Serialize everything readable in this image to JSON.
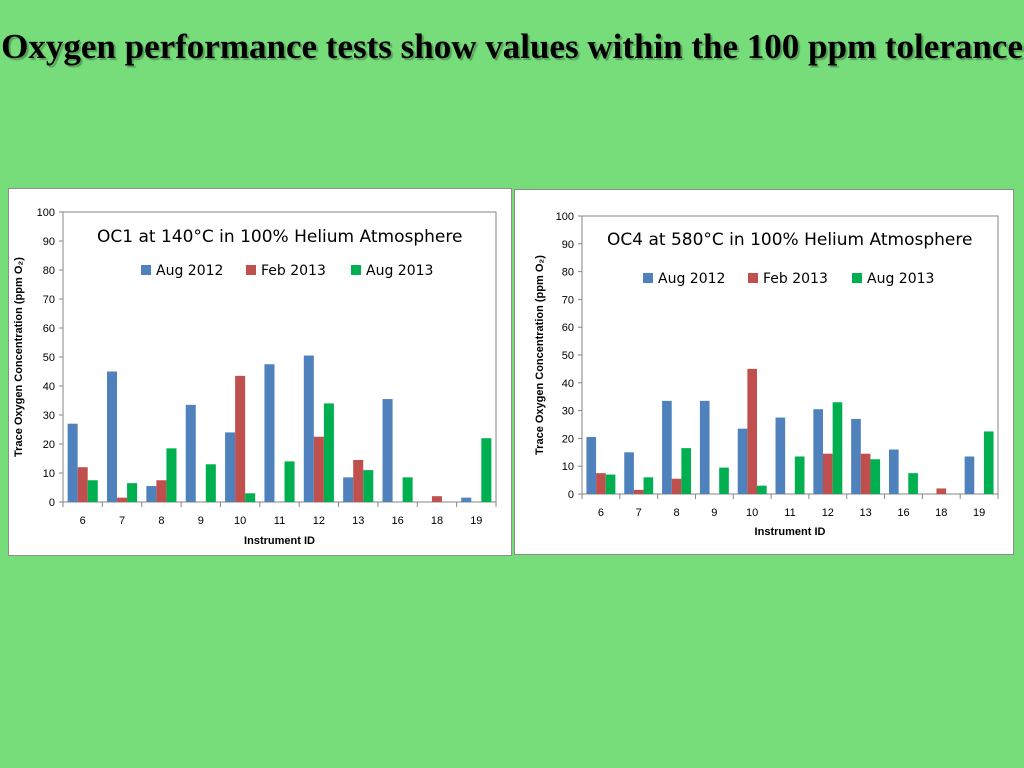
{
  "slide": {
    "title": "Oxygen performance tests show values within the 100 ppm tolerance"
  },
  "colors": {
    "background": "#76dd7a",
    "aug2012": "#4f81bd",
    "feb2013": "#c0504d",
    "aug2013": "#00b050"
  },
  "chart_data": [
    {
      "type": "bar",
      "title": "OC1 at 140°C in 100% Helium Atmosphere",
      "xlabel": "Instrument ID",
      "ylabel": "Trace Oxygen Concentration (ppm O₂)",
      "ylim": [
        0,
        100
      ],
      "yticks": [
        0,
        10,
        20,
        30,
        40,
        50,
        60,
        70,
        80,
        90,
        100
      ],
      "grid": false,
      "legend_position": "top",
      "categories": [
        "6",
        "7",
        "8",
        "9",
        "10",
        "11",
        "12",
        "13",
        "16",
        "18",
        "19"
      ],
      "series": [
        {
          "name": "Aug 2012",
          "color": "#4f81bd",
          "values": [
            27,
            45,
            5.5,
            33.5,
            24,
            47.5,
            50.5,
            8.5,
            35.5,
            null,
            1.5
          ]
        },
        {
          "name": "Feb 2013",
          "color": "#c0504d",
          "values": [
            12,
            1.5,
            7.5,
            null,
            43.5,
            null,
            22.5,
            14.5,
            null,
            2,
            null
          ]
        },
        {
          "name": "Aug 2013",
          "color": "#00b050",
          "values": [
            7.5,
            6.5,
            18.5,
            13,
            3,
            14,
            34,
            11,
            8.5,
            null,
            22
          ]
        }
      ]
    },
    {
      "type": "bar",
      "title": "OC4 at 580°C in 100% Helium Atmosphere",
      "xlabel": "Instrument ID",
      "ylabel": "Trace Oxygen Concentration (ppm O₂)",
      "ylim": [
        0,
        100
      ],
      "yticks": [
        0,
        10,
        20,
        30,
        40,
        50,
        60,
        70,
        80,
        90,
        100
      ],
      "grid": false,
      "legend_position": "top",
      "categories": [
        "6",
        "7",
        "8",
        "9",
        "10",
        "11",
        "12",
        "13",
        "16",
        "18",
        "19"
      ],
      "series": [
        {
          "name": "Aug 2012",
          "color": "#4f81bd",
          "values": [
            20.5,
            15,
            33.5,
            33.5,
            23.5,
            27.5,
            30.5,
            27,
            16,
            null,
            13.5
          ]
        },
        {
          "name": "Feb 2013",
          "color": "#c0504d",
          "values": [
            7.5,
            1.5,
            5.5,
            null,
            45,
            null,
            14.5,
            14.5,
            null,
            2,
            null
          ]
        },
        {
          "name": "Aug 2013",
          "color": "#00b050",
          "values": [
            7,
            6,
            16.5,
            9.5,
            3,
            13.5,
            33,
            12.5,
            7.5,
            null,
            22.5
          ]
        }
      ]
    }
  ]
}
